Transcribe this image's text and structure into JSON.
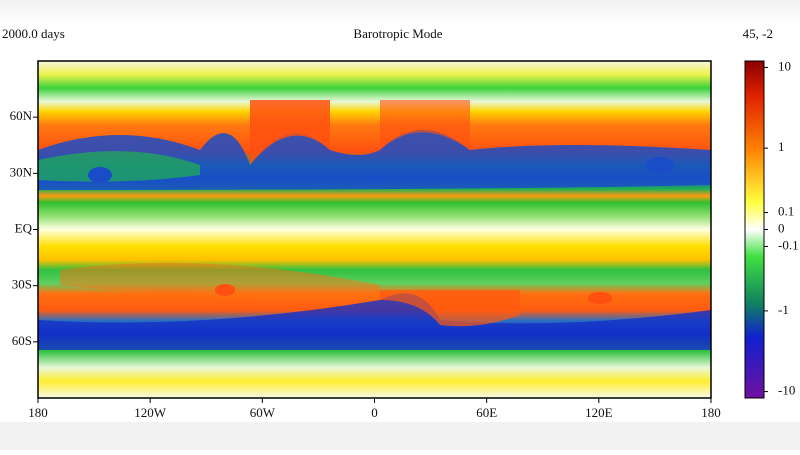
{
  "chart_data": {
    "type": "field",
    "title": "Barotropic Mode",
    "time_label": "2000.0 days",
    "corner_label": "45, -2",
    "xlim": [
      -180,
      180
    ],
    "xticks": [
      {
        "value": -180,
        "label": "180"
      },
      {
        "value": -120,
        "label": "120W"
      },
      {
        "value": -60,
        "label": "60W"
      },
      0,
      {
        "value": 60,
        "label": "60E"
      },
      {
        "value": 120,
        "label": "120E"
      },
      {
        "value": 180,
        "label": "180"
      }
    ],
    "ylim": [
      -90,
      90
    ],
    "yticks": [
      {
        "value": 60,
        "label": "60N"
      },
      {
        "value": 30,
        "label": "30N"
      },
      {
        "value": 0,
        "label": "EQ"
      },
      {
        "value": -30,
        "label": "30S"
      },
      {
        "value": -60,
        "label": "60S"
      }
    ],
    "colorbar": {
      "clim": [
        -12,
        12
      ],
      "ticks": [
        10,
        1,
        0.1,
        0,
        -0.1,
        -1,
        -10
      ]
    }
  }
}
